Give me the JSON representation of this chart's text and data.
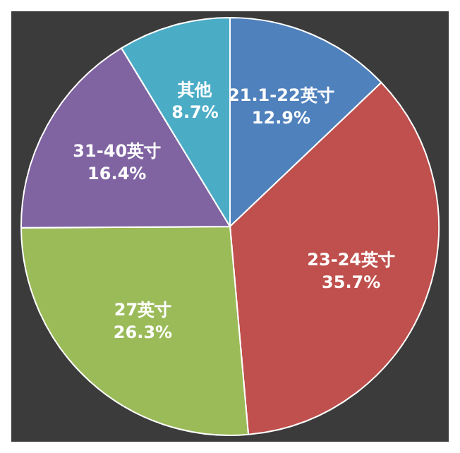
{
  "chart_data": {
    "type": "pie",
    "categories": [
      "21.1-22英寸",
      "23-24英寸",
      "27英寸",
      "31-40英寸",
      "其他"
    ],
    "values": [
      12.9,
      35.7,
      26.3,
      16.4,
      8.7
    ],
    "value_labels": [
      "12.9%",
      "35.7%",
      "26.3%",
      "16.4%",
      "8.7%"
    ],
    "colors": [
      "#4f81bd",
      "#c0504d",
      "#9bbb59",
      "#8064a2",
      "#4bacc6"
    ],
    "legend": false
  }
}
